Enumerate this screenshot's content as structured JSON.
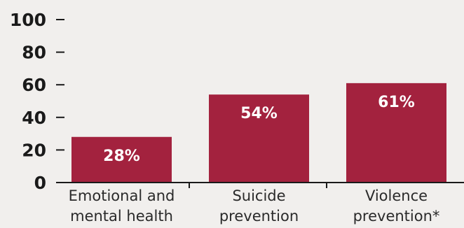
{
  "chart_data": {
    "type": "bar",
    "title": "",
    "xlabel": "",
    "ylabel": "",
    "categories": [
      [
        "Emotional and",
        "mental health"
      ],
      [
        "Suicide",
        "prevention"
      ],
      [
        "Violence",
        "prevention*"
      ]
    ],
    "values": [
      28,
      54,
      61
    ],
    "data_labels": [
      "28%",
      "54%",
      "61%"
    ],
    "yticks": [
      0,
      20,
      40,
      60,
      80,
      100
    ],
    "ylim": [
      0,
      100
    ],
    "grid": false,
    "legend": "none",
    "colors": {
      "bar": "#a3223e",
      "axis": "#1a1a1a",
      "background": "#f1efed"
    }
  }
}
